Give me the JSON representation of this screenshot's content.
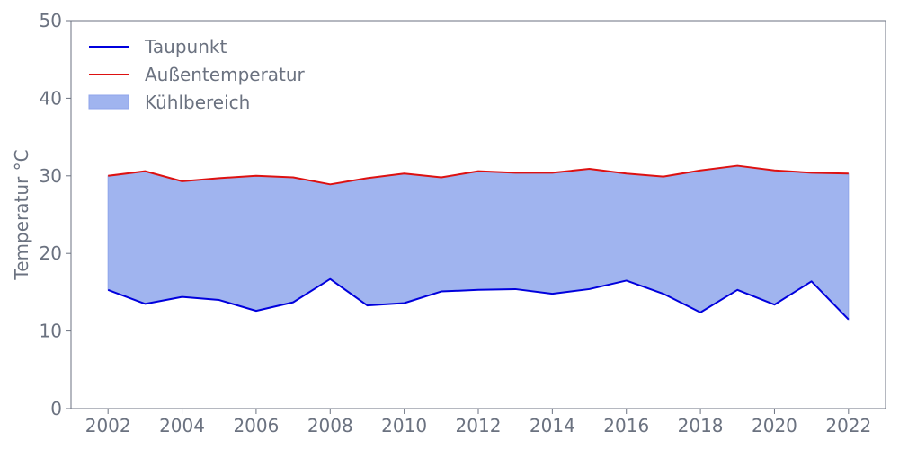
{
  "chart_data": {
    "type": "area",
    "title": "",
    "xlabel": "",
    "ylabel": "Temperatur °C",
    "x": [
      2002,
      2003,
      2004,
      2005,
      2006,
      2007,
      2008,
      2009,
      2010,
      2011,
      2012,
      2013,
      2014,
      2015,
      2016,
      2017,
      2018,
      2019,
      2020,
      2021,
      2022
    ],
    "xlim": [
      2001,
      2023
    ],
    "ylim": [
      0,
      50
    ],
    "xticks": [
      2002,
      2004,
      2006,
      2008,
      2010,
      2012,
      2014,
      2016,
      2018,
      2020,
      2022
    ],
    "yticks": [
      0,
      10,
      20,
      30,
      40,
      50
    ],
    "grid": false,
    "legend_position": "top-left",
    "series": [
      {
        "name": "Taupunkt",
        "kind": "line",
        "color": "#0000dd",
        "values": [
          15.3,
          13.5,
          14.4,
          14.0,
          12.6,
          13.7,
          16.7,
          13.3,
          13.6,
          15.1,
          15.3,
          15.4,
          14.8,
          15.4,
          16.5,
          14.8,
          12.4,
          15.3,
          13.4,
          16.4,
          11.5
        ]
      },
      {
        "name": "Außentemperatur",
        "kind": "line",
        "color": "#dd1111",
        "values": [
          30.0,
          30.6,
          29.3,
          29.7,
          30.0,
          29.8,
          28.9,
          29.7,
          30.3,
          29.8,
          30.6,
          30.4,
          30.4,
          30.9,
          30.3,
          29.9,
          30.7,
          31.3,
          30.7,
          30.4,
          30.3
        ]
      },
      {
        "name": "Kühlbereich",
        "kind": "fill_between",
        "color": "#a0b4ef",
        "edge_color": "#8fa5eb",
        "between": [
          "Taupunkt",
          "Außentemperatur"
        ]
      }
    ]
  }
}
